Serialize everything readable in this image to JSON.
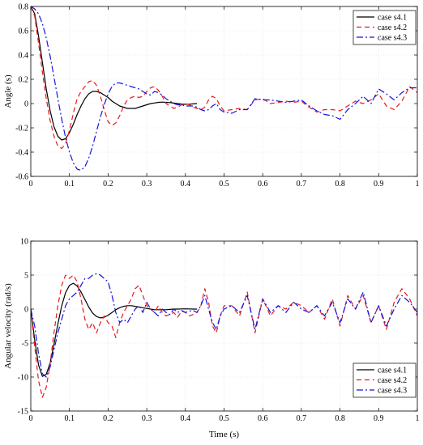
{
  "chart_data": [
    {
      "type": "line",
      "xlabel": "",
      "ylabel": "Angle (s)",
      "xlim": [
        0,
        1
      ],
      "ylim": [
        -0.6,
        0.8
      ],
      "xticks": [
        "0",
        "0.1",
        "0.2",
        "0.3",
        "0.4",
        "0.5",
        "0.6",
        "0.7",
        "0.8",
        "0.9",
        "1"
      ],
      "yticks": [
        "-0.6",
        "-0.4",
        "-0.2",
        "0",
        "0.2",
        "0.4",
        "0.6",
        "0.8"
      ],
      "grid": true,
      "legend_position": "top-right",
      "series": [
        {
          "name": "case s4.1",
          "color": "#000000",
          "dash": "solid",
          "x": [
            0,
            0.01,
            0.02,
            0.03,
            0.04,
            0.05,
            0.06,
            0.07,
            0.08,
            0.09,
            0.1,
            0.11,
            0.12,
            0.13,
            0.14,
            0.15,
            0.16,
            0.17,
            0.18,
            0.19,
            0.2,
            0.21,
            0.22,
            0.23,
            0.24,
            0.25,
            0.26,
            0.27,
            0.28,
            0.29,
            0.3,
            0.31,
            0.32,
            0.33,
            0.34,
            0.35,
            0.36,
            0.37,
            0.38,
            0.39,
            0.4,
            0.41,
            0.42,
            0.43
          ],
          "y": [
            0.8,
            0.74,
            0.56,
            0.34,
            0.12,
            -0.06,
            -0.19,
            -0.27,
            -0.3,
            -0.29,
            -0.24,
            -0.17,
            -0.09,
            -0.02,
            0.04,
            0.08,
            0.1,
            0.1,
            0.09,
            0.07,
            0.05,
            0.02,
            0.0,
            -0.02,
            -0.03,
            -0.04,
            -0.04,
            -0.04,
            -0.03,
            -0.02,
            -0.01,
            0.0,
            0.005,
            0.01,
            0.012,
            0.01,
            0.008,
            0.004,
            0.0,
            -0.004,
            -0.006,
            -0.005,
            -0.003,
            0.0
          ]
        },
        {
          "name": "case s4.2",
          "color": "#e8191c",
          "dash": "6,4",
          "x": [
            0,
            0.01,
            0.02,
            0.03,
            0.04,
            0.05,
            0.06,
            0.07,
            0.08,
            0.09,
            0.1,
            0.11,
            0.12,
            0.13,
            0.14,
            0.15,
            0.16,
            0.17,
            0.18,
            0.19,
            0.2,
            0.21,
            0.22,
            0.23,
            0.24,
            0.25,
            0.26,
            0.27,
            0.28,
            0.29,
            0.3,
            0.31,
            0.32,
            0.33,
            0.34,
            0.35,
            0.36,
            0.37,
            0.38,
            0.39,
            0.4,
            0.41,
            0.42,
            0.43,
            0.44,
            0.45,
            0.46,
            0.47,
            0.48,
            0.49,
            0.5,
            0.52,
            0.54,
            0.56,
            0.58,
            0.6,
            0.62,
            0.64,
            0.66,
            0.68,
            0.7,
            0.72,
            0.74,
            0.76,
            0.78,
            0.8,
            0.82,
            0.84,
            0.86,
            0.88,
            0.9,
            0.92,
            0.94,
            0.96,
            0.98,
            1.0
          ],
          "y": [
            0.8,
            0.72,
            0.5,
            0.26,
            0.04,
            -0.14,
            -0.27,
            -0.35,
            -0.37,
            -0.33,
            -0.22,
            -0.08,
            0.04,
            0.1,
            0.14,
            0.18,
            0.19,
            0.15,
            0.06,
            -0.05,
            -0.15,
            -0.18,
            -0.16,
            -0.1,
            -0.02,
            0.03,
            0.05,
            0.06,
            0.05,
            0.06,
            0.1,
            0.13,
            0.14,
            0.11,
            0.06,
            0.0,
            -0.02,
            -0.04,
            -0.03,
            -0.01,
            0.0,
            -0.01,
            -0.03,
            -0.04,
            -0.05,
            -0.03,
            0.03,
            0.06,
            0.04,
            -0.02,
            -0.06,
            -0.05,
            -0.04,
            -0.05,
            0.03,
            0.04,
            0.0,
            0.01,
            0.02,
            0.01,
            0.02,
            -0.03,
            -0.07,
            -0.05,
            -0.05,
            -0.06,
            -0.02,
            0.02,
            0.0,
            0.03,
            0.08,
            -0.02,
            -0.05,
            0.02,
            0.14,
            0.09
          ]
        },
        {
          "name": "case s4.3",
          "color": "#1414e0",
          "dash": "8,3,2,3",
          "x": [
            0,
            0.01,
            0.02,
            0.03,
            0.04,
            0.05,
            0.06,
            0.07,
            0.08,
            0.09,
            0.1,
            0.11,
            0.12,
            0.13,
            0.14,
            0.15,
            0.16,
            0.17,
            0.18,
            0.19,
            0.2,
            0.21,
            0.22,
            0.23,
            0.24,
            0.25,
            0.26,
            0.27,
            0.28,
            0.29,
            0.3,
            0.31,
            0.32,
            0.33,
            0.34,
            0.35,
            0.36,
            0.37,
            0.38,
            0.39,
            0.4,
            0.41,
            0.42,
            0.43,
            0.44,
            0.45,
            0.46,
            0.47,
            0.48,
            0.49,
            0.5,
            0.52,
            0.54,
            0.56,
            0.58,
            0.6,
            0.62,
            0.64,
            0.66,
            0.68,
            0.7,
            0.72,
            0.74,
            0.76,
            0.78,
            0.8,
            0.82,
            0.84,
            0.86,
            0.88,
            0.9,
            0.92,
            0.94,
            0.96,
            0.98,
            1.0
          ],
          "y": [
            0.8,
            0.78,
            0.74,
            0.66,
            0.54,
            0.39,
            0.22,
            0.04,
            -0.13,
            -0.28,
            -0.4,
            -0.49,
            -0.54,
            -0.55,
            -0.52,
            -0.45,
            -0.35,
            -0.23,
            -0.11,
            -0.01,
            0.08,
            0.14,
            0.17,
            0.17,
            0.16,
            0.15,
            0.14,
            0.13,
            0.12,
            0.1,
            0.08,
            0.07,
            0.1,
            0.09,
            0.07,
            0.04,
            0.02,
            0.0,
            -0.01,
            -0.01,
            -0.02,
            -0.02,
            -0.02,
            -0.03,
            -0.05,
            -0.06,
            -0.05,
            -0.02,
            0.0,
            -0.05,
            -0.07,
            -0.08,
            -0.05,
            -0.05,
            0.04,
            0.03,
            0.03,
            0.02,
            0.01,
            0.02,
            0.03,
            -0.02,
            -0.06,
            -0.09,
            -0.1,
            -0.13,
            -0.05,
            0.0,
            0.06,
            0.0,
            0.12,
            0.08,
            0.03,
            0.09,
            0.13,
            0.13
          ]
        }
      ]
    },
    {
      "type": "line",
      "xlabel": "Time (s)",
      "ylabel": "Angular velocity (rad/s)",
      "xlim": [
        0,
        1
      ],
      "ylim": [
        -15,
        10
      ],
      "xticks": [
        "0",
        "0.1",
        "0.2",
        "0.3",
        "0.4",
        "0.5",
        "0.6",
        "0.7",
        "0.8",
        "0.9",
        "1"
      ],
      "yticks": [
        "-15",
        "-10",
        "-5",
        "0",
        "5",
        "10"
      ],
      "grid": true,
      "legend_position": "bottom-right",
      "series": [
        {
          "name": "case s4.1",
          "color": "#000000",
          "dash": "solid",
          "x": [
            0,
            0.01,
            0.02,
            0.03,
            0.04,
            0.05,
            0.06,
            0.07,
            0.08,
            0.09,
            0.1,
            0.11,
            0.12,
            0.13,
            0.14,
            0.15,
            0.16,
            0.17,
            0.18,
            0.19,
            0.2,
            0.21,
            0.22,
            0.23,
            0.24,
            0.25,
            0.26,
            0.27,
            0.28,
            0.29,
            0.3,
            0.31,
            0.32,
            0.33,
            0.34,
            0.35,
            0.36,
            0.37,
            0.38,
            0.39,
            0.4,
            0.41,
            0.42,
            0.43
          ],
          "y": [
            0,
            -4.5,
            -8.2,
            -9.9,
            -9.6,
            -7.9,
            -5.2,
            -2.2,
            0.5,
            2.4,
            3.5,
            3.8,
            3.4,
            2.5,
            1.4,
            0.3,
            -0.6,
            -1.1,
            -1.3,
            -1.2,
            -0.9,
            -0.5,
            -0.1,
            0.2,
            0.4,
            0.5,
            0.5,
            0.4,
            0.3,
            0.2,
            0.1,
            0.0,
            -0.1,
            -0.1,
            -0.1,
            -0.1,
            -0.05,
            0.0,
            0.0,
            0.02,
            0.03,
            0.02,
            0.0,
            0.0
          ]
        },
        {
          "name": "case s4.2",
          "color": "#e8191c",
          "dash": "6,4",
          "x": [
            0,
            0.01,
            0.02,
            0.03,
            0.04,
            0.05,
            0.06,
            0.07,
            0.08,
            0.09,
            0.1,
            0.11,
            0.12,
            0.13,
            0.14,
            0.15,
            0.16,
            0.17,
            0.18,
            0.19,
            0.2,
            0.21,
            0.22,
            0.23,
            0.24,
            0.25,
            0.26,
            0.27,
            0.28,
            0.29,
            0.3,
            0.31,
            0.32,
            0.33,
            0.34,
            0.35,
            0.36,
            0.37,
            0.38,
            0.39,
            0.4,
            0.41,
            0.42,
            0.43,
            0.44,
            0.45,
            0.46,
            0.47,
            0.48,
            0.49,
            0.5,
            0.52,
            0.54,
            0.56,
            0.58,
            0.6,
            0.62,
            0.64,
            0.66,
            0.68,
            0.7,
            0.72,
            0.74,
            0.76,
            0.78,
            0.8,
            0.82,
            0.84,
            0.86,
            0.88,
            0.9,
            0.92,
            0.94,
            0.96,
            0.98,
            1.0
          ],
          "y": [
            0,
            -5.5,
            -10.5,
            -13.0,
            -11.5,
            -8.0,
            -3.5,
            0.5,
            3.5,
            5.0,
            4.5,
            5.0,
            4.0,
            1.5,
            -1.5,
            -3.0,
            -2.0,
            -3.5,
            -2.0,
            -1.0,
            -2.0,
            -2.5,
            -4.2,
            -2.0,
            -0.5,
            0.5,
            1.5,
            3.0,
            3.5,
            2.0,
            0.5,
            0.0,
            -0.5,
            0.5,
            -0.5,
            -1.0,
            -0.8,
            -0.5,
            -1.2,
            -0.3,
            -0.5,
            -1.0,
            -0.8,
            -0.5,
            0.5,
            3.0,
            1.0,
            -2.5,
            -3.5,
            -1.0,
            0.5,
            0.5,
            -1.0,
            2.5,
            -3.5,
            1.5,
            -1.0,
            0.5,
            0.0,
            1.0,
            0.5,
            -0.5,
            0.5,
            -1.5,
            1.5,
            -2.5,
            2.0,
            0.0,
            2.0,
            -2.0,
            0.5,
            -3.0,
            1.0,
            3.0,
            1.5,
            -1.0
          ]
        },
        {
          "name": "case s4.3",
          "color": "#1414e0",
          "dash": "8,3,2,3",
          "x": [
            0,
            0.01,
            0.02,
            0.03,
            0.04,
            0.05,
            0.06,
            0.07,
            0.08,
            0.09,
            0.1,
            0.11,
            0.12,
            0.13,
            0.14,
            0.15,
            0.16,
            0.17,
            0.18,
            0.19,
            0.2,
            0.21,
            0.22,
            0.23,
            0.24,
            0.25,
            0.26,
            0.27,
            0.28,
            0.29,
            0.3,
            0.31,
            0.32,
            0.33,
            0.34,
            0.35,
            0.36,
            0.37,
            0.38,
            0.39,
            0.4,
            0.41,
            0.42,
            0.43,
            0.44,
            0.45,
            0.46,
            0.47,
            0.48,
            0.49,
            0.5,
            0.52,
            0.54,
            0.56,
            0.58,
            0.6,
            0.62,
            0.64,
            0.66,
            0.68,
            0.7,
            0.72,
            0.74,
            0.76,
            0.78,
            0.8,
            0.82,
            0.84,
            0.86,
            0.88,
            0.9,
            0.92,
            0.94,
            0.96,
            0.98,
            1.0
          ],
          "y": [
            0,
            -2.5,
            -6.5,
            -9.5,
            -10.0,
            -8.5,
            -6.0,
            -3.5,
            -1.5,
            0.5,
            1.5,
            2.0,
            2.5,
            3.5,
            4.5,
            4.5,
            5.0,
            5.2,
            5.0,
            4.5,
            4.0,
            2.0,
            -0.5,
            -2.0,
            -1.5,
            -2.0,
            -1.0,
            0.0,
            0.5,
            -0.5,
            1.0,
            0.0,
            -0.5,
            -1.0,
            0.0,
            -0.5,
            -0.8,
            0.0,
            -0.5,
            -0.2,
            -0.5,
            -0.3,
            -0.2,
            -0.5,
            0.5,
            2.0,
            0.0,
            -2.0,
            -3.0,
            -1.0,
            0.0,
            0.5,
            -0.5,
            2.0,
            -3.0,
            1.5,
            -0.5,
            0.5,
            -0.5,
            1.0,
            0.0,
            -0.5,
            0.5,
            -1.0,
            1.0,
            -2.0,
            1.5,
            0.0,
            2.5,
            -2.0,
            0.5,
            -2.5,
            0.0,
            2.0,
            1.0,
            -0.5
          ]
        }
      ]
    }
  ]
}
